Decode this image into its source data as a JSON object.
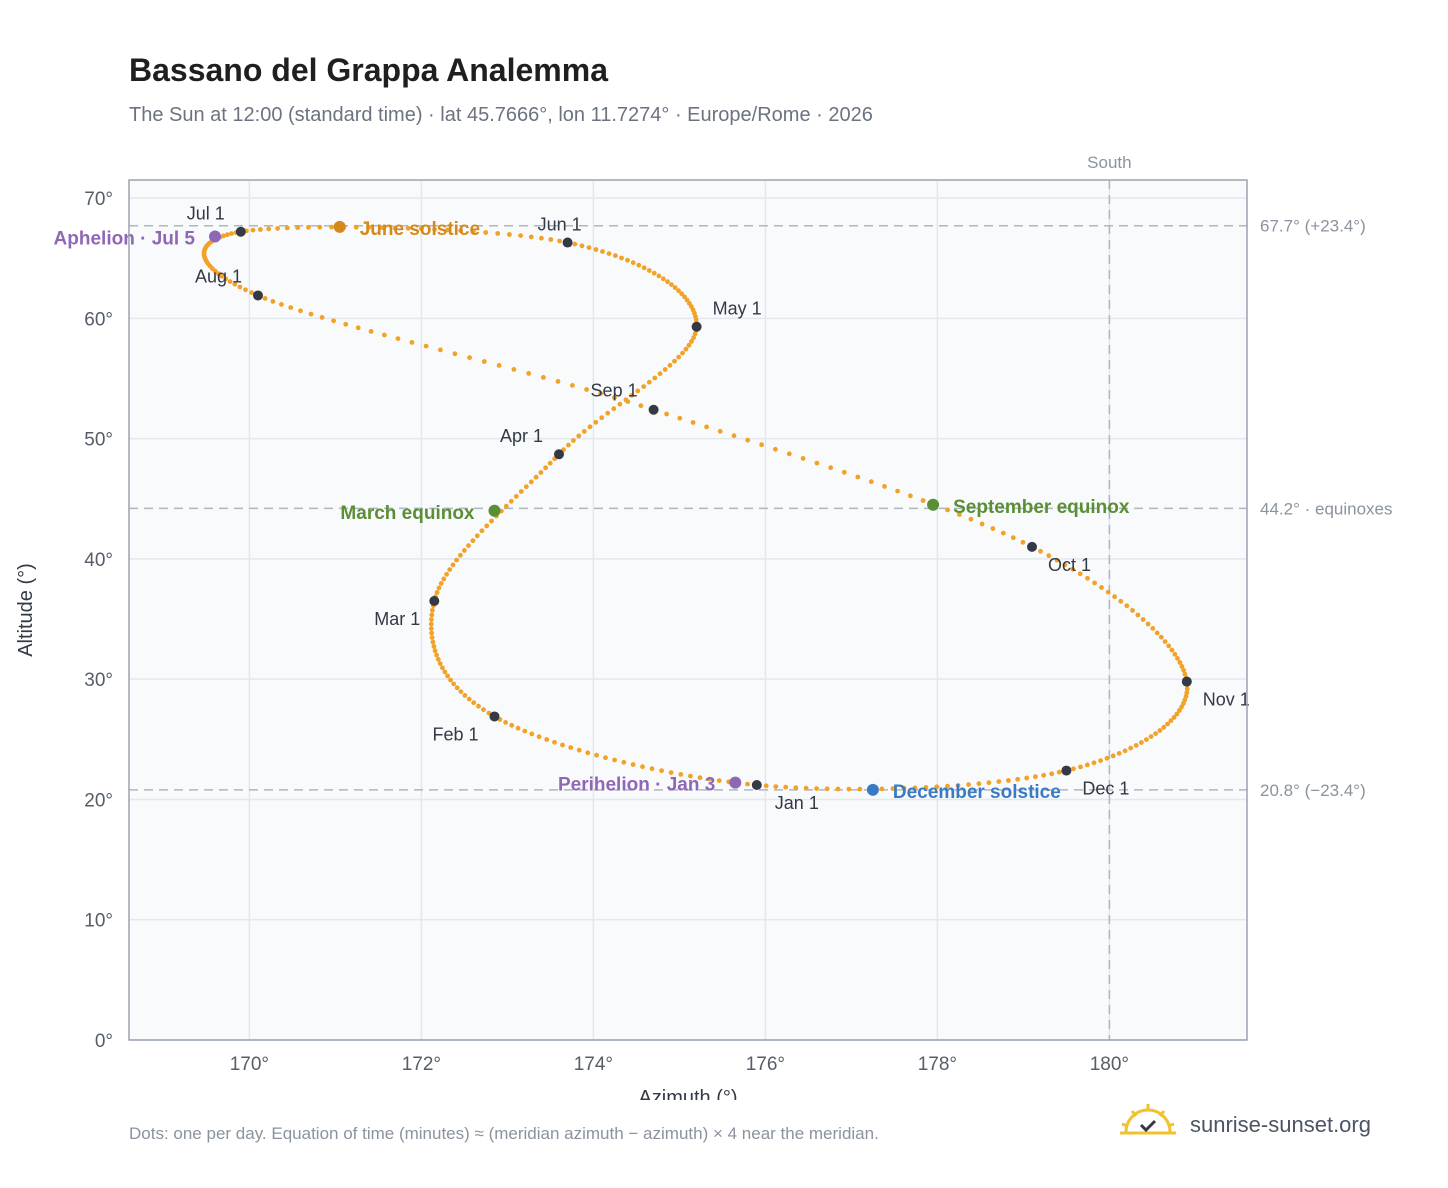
{
  "header": {
    "title": "Bassano del Grappa Analemma",
    "subtitle": "The Sun at 12:00 (standard time) · lat 45.7666°, lon 11.7274° · Europe/Rome · 2026"
  },
  "footer": {
    "note": "Dots: one per day. Equation of time (minutes) ≈ (meridian azimuth − azimuth) × 4 near the meridian.",
    "brand": "sunrise-sunset.org",
    "brand_icon": "sun-check-icon"
  },
  "colors": {
    "curve": "#f2a227",
    "month_marker": "#333a45",
    "june_solstice": "#d4891a",
    "equinox": "#5a8f35",
    "december_solstice": "#3b7bc4",
    "apsis": "#8f68b5",
    "reference_line": "#aeb7c2",
    "plot_bg": "#f8fafc",
    "grid": "#e3e8ee"
  },
  "chart_data": {
    "type": "scatter",
    "xlabel": "Azimuth (°)",
    "ylabel": "Altitude (°)",
    "xlim": [
      168.6,
      181.6
    ],
    "ylim": [
      0,
      71.5
    ],
    "x_ticks": [
      170,
      172,
      174,
      176,
      178,
      180
    ],
    "x_tick_labels": [
      "170°",
      "172°",
      "174°",
      "176°",
      "178°",
      "180°"
    ],
    "y_ticks": [
      0,
      10,
      20,
      30,
      40,
      50,
      60,
      70
    ],
    "y_tick_labels": [
      "0°",
      "10°",
      "20°",
      "30°",
      "40°",
      "50°",
      "60°",
      "70°"
    ],
    "grid": true,
    "reference_lines": [
      {
        "axis": "y",
        "value": 67.7,
        "label": "67.7° (+23.4°)"
      },
      {
        "axis": "y",
        "value": 44.2,
        "label": "44.2° · equinoxes"
      },
      {
        "axis": "y",
        "value": 20.8,
        "label": "20.8° (−23.4°)"
      },
      {
        "axis": "x",
        "value": 180,
        "label": "South"
      }
    ],
    "month_markers": [
      {
        "label": "Jan 1",
        "az": 175.9,
        "alt": 21.2
      },
      {
        "label": "Feb 1",
        "az": 172.85,
        "alt": 26.9
      },
      {
        "label": "Mar 1",
        "az": 172.15,
        "alt": 36.5
      },
      {
        "label": "Apr 1",
        "az": 173.6,
        "alt": 48.7
      },
      {
        "label": "May 1",
        "az": 175.2,
        "alt": 59.3
      },
      {
        "label": "Jun 1",
        "az": 173.7,
        "alt": 66.3
      },
      {
        "label": "Jul 1",
        "az": 169.9,
        "alt": 67.2
      },
      {
        "label": "Aug 1",
        "az": 170.1,
        "alt": 61.9
      },
      {
        "label": "Sep 1",
        "az": 174.7,
        "alt": 52.4
      },
      {
        "label": "Oct 1",
        "az": 179.1,
        "alt": 41.0
      },
      {
        "label": "Nov 1",
        "az": 180.9,
        "alt": 29.8
      },
      {
        "label": "Dec 1",
        "az": 179.5,
        "alt": 22.4
      }
    ],
    "events": [
      {
        "label": "June solstice",
        "az": 171.05,
        "alt": 67.6,
        "color_key": "june_solstice"
      },
      {
        "label": "March equinox",
        "az": 172.85,
        "alt": 44.0,
        "color_key": "equinox"
      },
      {
        "label": "September equinox",
        "az": 177.95,
        "alt": 44.5,
        "color_key": "equinox"
      },
      {
        "label": "December solstice",
        "az": 177.25,
        "alt": 20.8,
        "color_key": "december_solstice"
      },
      {
        "label": "Aphelion · Jul 5",
        "az": 169.6,
        "alt": 66.8,
        "color_key": "apsis"
      },
      {
        "label": "Perihelion · Jan 3",
        "az": 175.65,
        "alt": 21.4,
        "color_key": "apsis"
      }
    ]
  }
}
